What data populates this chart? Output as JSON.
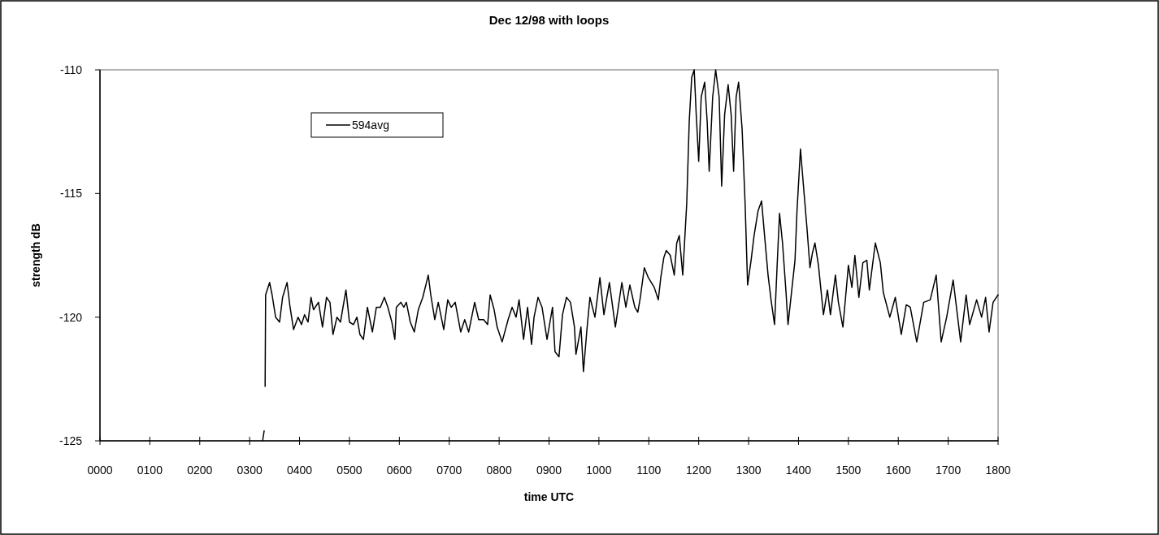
{
  "chart_data": {
    "type": "line",
    "title": "Dec 12/98 with loops",
    "xlabel": "time UTC",
    "ylabel": "strength dB",
    "xlim": [
      0,
      1800
    ],
    "ylim": [
      -125,
      -110
    ],
    "xticks": [
      {
        "value": 0,
        "label": "0000"
      },
      {
        "value": 100,
        "label": "0100"
      },
      {
        "value": 200,
        "label": "0200"
      },
      {
        "value": 300,
        "label": "0300"
      },
      {
        "value": 400,
        "label": "0400"
      },
      {
        "value": 500,
        "label": "0500"
      },
      {
        "value": 600,
        "label": "0600"
      },
      {
        "value": 700,
        "label": "0700"
      },
      {
        "value": 800,
        "label": "0800"
      },
      {
        "value": 900,
        "label": "0900"
      },
      {
        "value": 1000,
        "label": "1000"
      },
      {
        "value": 1100,
        "label": "1100"
      },
      {
        "value": 1200,
        "label": "1200"
      },
      {
        "value": 1300,
        "label": "1300"
      },
      {
        "value": 1400,
        "label": "1400"
      },
      {
        "value": 1500,
        "label": "1500"
      },
      {
        "value": 1600,
        "label": "1600"
      },
      {
        "value": 1700,
        "label": "1700"
      },
      {
        "value": 1800,
        "label": "1800"
      }
    ],
    "yticks": [
      -125,
      -120,
      -115,
      -110
    ],
    "grid": false,
    "legend": "top left",
    "marker": "none",
    "line_style": "solid",
    "series": [
      {
        "name": "594avg",
        "color": "#000000",
        "x": [
          326,
          329,
          330,
          331,
          332,
          340,
          345,
          352,
          360,
          366,
          375,
          381,
          388,
          397,
          404,
          410,
          417,
          423,
          428,
          438,
          446,
          454,
          461,
          467,
          475,
          482,
          493,
          500,
          508,
          515,
          521,
          528,
          536,
          546,
          554,
          562,
          570,
          577,
          585,
          591,
          594,
          603,
          609,
          614,
          622,
          630,
          638,
          647,
          658,
          663,
          671,
          678,
          689,
          697,
          704,
          712,
          723,
          731,
          739,
          751,
          759,
          769,
          777,
          782,
          790,
          796,
          806,
          818,
          826,
          834,
          840,
          849,
          857,
          865,
          870,
          878,
          886,
          896,
          907,
          912,
          920,
          927,
          935,
          943,
          951,
          954,
          964,
          969,
          976,
          982,
          992,
          1002,
          1010,
          1021,
          1033,
          1046,
          1054,
          1062,
          1072,
          1078,
          1083,
          1091,
          1099,
          1111,
          1119,
          1124,
          1130,
          1135,
          1143,
          1151,
          1156,
          1161,
          1168,
          1176,
          1181,
          1186,
          1191,
          1195,
          1200,
          1205,
          1212,
          1217,
          1221,
          1228,
          1234,
          1241,
          1246,
          1252,
          1259,
          1265,
          1270,
          1275,
          1280,
          1287,
          1293,
          1298,
          1305,
          1311,
          1319,
          1326,
          1332,
          1339,
          1345,
          1352,
          1357,
          1362,
          1368,
          1375,
          1379,
          1386,
          1393,
          1397,
          1404,
          1410,
          1417,
          1423,
          1428,
          1433,
          1440,
          1450,
          1458,
          1464,
          1474,
          1480,
          1489,
          1497,
          1500,
          1507,
          1513,
          1521,
          1529,
          1537,
          1542,
          1554,
          1564,
          1570,
          1583,
          1594,
          1606,
          1616,
          1624,
          1637,
          1651,
          1664,
          1676,
          1686,
          1697,
          1710,
          1725,
          1736,
          1743,
          1757,
          1767,
          1775,
          1782,
          1790,
          1800
        ],
        "values": [
          -125.0,
          -124.6,
          null,
          -122.8,
          -119.1,
          -118.6,
          -119.1,
          -120.0,
          -120.2,
          -119.2,
          -118.6,
          -119.6,
          -120.5,
          -120.0,
          -120.3,
          -119.9,
          -120.2,
          -119.2,
          -119.7,
          -119.4,
          -120.4,
          -119.2,
          -119.4,
          -120.7,
          -120.0,
          -120.2,
          -118.9,
          -120.2,
          -120.3,
          -120.0,
          -120.7,
          -120.9,
          -119.6,
          -120.6,
          -119.6,
          -119.6,
          -119.2,
          -119.6,
          -120.2,
          -120.9,
          -119.6,
          -119.4,
          -119.6,
          -119.4,
          -120.2,
          -120.6,
          -119.7,
          -119.2,
          -118.3,
          -119.1,
          -120.1,
          -119.4,
          -120.5,
          -119.3,
          -119.6,
          -119.4,
          -120.6,
          -120.1,
          -120.6,
          -119.4,
          -120.1,
          -120.1,
          -120.3,
          -119.1,
          -119.7,
          -120.4,
          -121.0,
          -120.1,
          -119.6,
          -120.0,
          -119.3,
          -120.9,
          -119.6,
          -121.1,
          -120.0,
          -119.2,
          -119.6,
          -120.9,
          -119.6,
          -121.4,
          -121.6,
          -119.9,
          -119.2,
          -119.4,
          -120.4,
          -121.5,
          -120.4,
          -122.2,
          -120.5,
          -119.2,
          -120.0,
          -118.4,
          -119.9,
          -118.6,
          -120.4,
          -118.6,
          -119.6,
          -118.7,
          -119.6,
          -119.8,
          -119.2,
          -118.0,
          -118.4,
          -118.8,
          -119.3,
          -118.4,
          -117.6,
          -117.3,
          -117.5,
          -118.3,
          -117.0,
          -116.7,
          -118.3,
          -115.4,
          -112.1,
          -110.3,
          -110.0,
          -111.8,
          -113.7,
          -111.1,
          -110.5,
          -112.1,
          -114.1,
          -111.1,
          -110.0,
          -111.1,
          -114.7,
          -111.8,
          -110.6,
          -111.8,
          -114.1,
          -111.1,
          -110.5,
          -112.4,
          -115.4,
          -118.7,
          -117.7,
          -116.7,
          -115.7,
          -115.3,
          -116.7,
          -118.3,
          -119.3,
          -120.3,
          -118.0,
          -115.8,
          -117.0,
          -119.0,
          -120.3,
          -119.0,
          -117.7,
          -115.7,
          -113.2,
          -114.7,
          -116.4,
          -118.0,
          -117.4,
          -117.0,
          -117.9,
          -119.9,
          -118.9,
          -119.9,
          -118.3,
          -119.4,
          -120.4,
          -118.6,
          -117.9,
          -118.8,
          -117.5,
          -119.2,
          -117.8,
          -117.7,
          -118.9,
          -117.0,
          -117.8,
          -119.0,
          -120.0,
          -119.2,
          -120.7,
          -119.5,
          -119.6,
          -121.0,
          -119.4,
          -119.3,
          -118.3,
          -121.0,
          -120.0,
          -118.5,
          -121.0,
          -119.1,
          -120.3,
          -119.3,
          -120.0,
          -119.2,
          -120.6,
          -119.4,
          -119.1
        ]
      }
    ]
  }
}
